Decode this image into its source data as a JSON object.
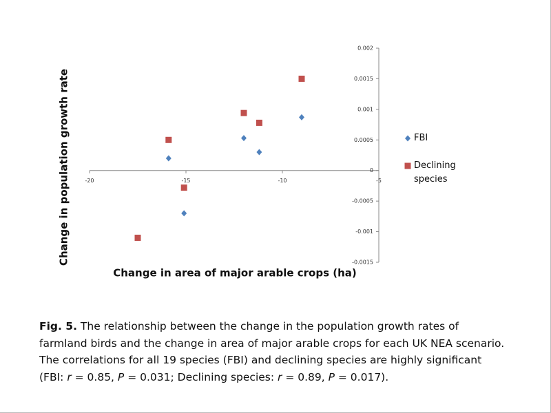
{
  "chart_data": {
    "type": "scatter",
    "xlabel": "Change in area of major arable crops (ha)",
    "ylabel": "Change in population growth rate",
    "xlim": [
      -20,
      -5
    ],
    "xticks": [
      -20,
      -15,
      -10,
      -5
    ],
    "ylim": [
      -0.0015,
      0.002
    ],
    "yticks": [
      -0.0015,
      -0.001,
      -0.0005,
      0,
      0.0005,
      0.001,
      0.0015,
      0.002
    ],
    "series": [
      {
        "name": "FBI",
        "color": "#4f81bd",
        "marker": "diamond",
        "x": [
          -15.9,
          -15.1,
          -12.0,
          -11.2,
          -9.0,
          -17.5
        ],
        "values": [
          0.0002,
          -0.0007,
          0.00053,
          0.0003,
          0.00087,
          -0.0011
        ]
      },
      {
        "name": "Declining species",
        "color": "#c0504d",
        "marker": "square",
        "x": [
          -15.9,
          -15.1,
          -12.0,
          -11.2,
          -9.0,
          -17.5
        ],
        "values": [
          0.0005,
          -0.00028,
          0.00094,
          0.00078,
          0.0015,
          -0.0011
        ]
      }
    ]
  },
  "caption": [
    "Fig. 5.",
    " The relationship between the change in the population growth rates of farmland birds and the change in area of major arable crops for each UK NEA scenario. The correlations for all 19 species (FBI) and declining species are highly significant (FBI: ",
    "r",
    " = 0.85, ",
    "P",
    " = 0.031; Declining species: ",
    "r",
    " = 0.89, ",
    "P",
    " = 0.017)."
  ]
}
